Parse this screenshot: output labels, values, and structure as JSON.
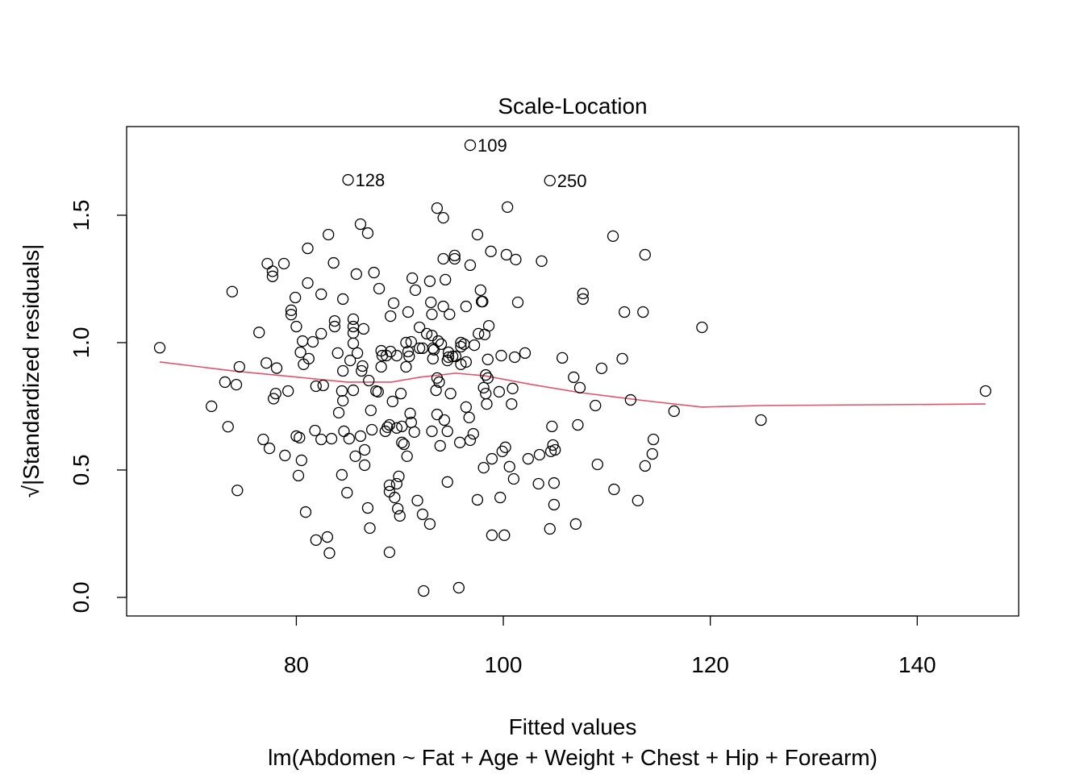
{
  "chart_data": {
    "type": "scatter",
    "title": "Scale-Location",
    "xlabel": "Fitted values",
    "subtitle": "lm(Abdomen ~ Fat + Age + Weight + Chest + Hip + Forearm)",
    "ylabel": "√|Standardized residuals|",
    "xlim": [
      63.6,
      149.8
    ],
    "ylim": [
      -0.073,
      1.848
    ],
    "xticks": [
      80,
      100,
      120,
      140
    ],
    "xtick_labels": [
      "80",
      "100",
      "120",
      "140"
    ],
    "yticks": [
      0.0,
      0.5,
      1.0,
      1.5
    ],
    "ytick_labels": [
      "0.0",
      "0.5",
      "1.0",
      "1.5"
    ],
    "grid": false,
    "point_color": "#000000",
    "line_color": "#DF536B",
    "labeled_points": [
      {
        "label": "128",
        "x": 85.0,
        "y": 1.639
      },
      {
        "label": "109",
        "x": 96.8,
        "y": 1.775
      },
      {
        "label": "250",
        "x": 104.5,
        "y": 1.636
      }
    ],
    "points": [
      [
        66.8,
        0.98
      ],
      [
        71.8,
        0.75
      ],
      [
        73.1,
        0.845
      ],
      [
        73.4,
        0.67
      ],
      [
        73.8,
        1.2
      ],
      [
        74.2,
        0.835
      ],
      [
        74.3,
        0.42
      ],
      [
        74.5,
        0.905
      ],
      [
        76.4,
        1.04
      ],
      [
        76.8,
        0.62
      ],
      [
        77.1,
        0.92
      ],
      [
        77.2,
        1.31
      ],
      [
        77.4,
        0.585
      ],
      [
        77.7,
        1.28
      ],
      [
        77.7,
        1.26
      ],
      [
        77.8,
        0.78
      ],
      [
        78.0,
        0.8
      ],
      [
        78.1,
        0.9
      ],
      [
        78.8,
        1.31
      ],
      [
        78.9,
        0.557
      ],
      [
        79.2,
        0.81
      ],
      [
        79.5,
        1.127
      ],
      [
        79.5,
        1.11
      ],
      [
        79.9,
        1.177
      ],
      [
        80.0,
        1.063
      ],
      [
        80.0,
        0.633
      ],
      [
        80.2,
        0.478
      ],
      [
        80.3,
        0.627
      ],
      [
        80.4,
        0.962
      ],
      [
        80.5,
        0.538
      ],
      [
        80.6,
        1.006
      ],
      [
        80.7,
        0.915
      ],
      [
        80.9,
        0.335
      ],
      [
        81.1,
        1.234
      ],
      [
        81.1,
        1.37
      ],
      [
        81.2,
        0.937
      ],
      [
        81.6,
        1.003
      ],
      [
        81.8,
        0.655
      ],
      [
        81.9,
        0.829
      ],
      [
        81.9,
        0.225
      ],
      [
        82.4,
        1.19
      ],
      [
        82.4,
        1.035
      ],
      [
        82.4,
        0.62
      ],
      [
        82.6,
        0.832
      ],
      [
        83.0,
        0.237
      ],
      [
        83.1,
        1.424
      ],
      [
        83.2,
        0.174
      ],
      [
        83.4,
        0.623
      ],
      [
        83.6,
        1.313
      ],
      [
        83.7,
        1.085
      ],
      [
        83.7,
        1.063
      ],
      [
        84.0,
        0.959
      ],
      [
        84.1,
        0.725
      ],
      [
        84.4,
        0.81
      ],
      [
        84.4,
        0.481
      ],
      [
        84.5,
        0.772
      ],
      [
        84.5,
        1.171
      ],
      [
        84.6,
        0.652
      ],
      [
        84.5,
        0.889
      ],
      [
        84.9,
        0.411
      ],
      [
        85.1,
        0.623
      ],
      [
        85.2,
        0.93
      ],
      [
        85.5,
        1.092
      ],
      [
        85.5,
        1.038
      ],
      [
        85.5,
        0.997
      ],
      [
        85.5,
        1.063
      ],
      [
        85.5,
        0.813
      ],
      [
        85.7,
        0.554
      ],
      [
        85.8,
        1.269
      ],
      [
        85.9,
        0.959
      ],
      [
        86.2,
        1.465
      ],
      [
        86.2,
        0.633
      ],
      [
        86.3,
        0.889
      ],
      [
        86.4,
        0.908
      ],
      [
        86.5,
        1.054
      ],
      [
        86.6,
        0.579
      ],
      [
        86.6,
        0.519
      ],
      [
        86.9,
        1.43
      ],
      [
        86.9,
        0.351
      ],
      [
        87.0,
        0.851
      ],
      [
        87.1,
        0.272
      ],
      [
        87.2,
        0.734
      ],
      [
        87.3,
        0.658
      ],
      [
        87.5,
        1.275
      ],
      [
        87.7,
        0.81
      ],
      [
        87.9,
        0.807
      ],
      [
        88.0,
        1.212
      ],
      [
        88.2,
        0.968
      ],
      [
        88.2,
        0.905
      ],
      [
        88.3,
        0.949
      ],
      [
        88.6,
        0.652
      ],
      [
        88.7,
        0.949
      ],
      [
        88.8,
        0.668
      ],
      [
        89.0,
        0.177
      ],
      [
        89.0,
        0.44
      ],
      [
        89.0,
        0.415
      ],
      [
        89.0,
        0.677
      ],
      [
        89.1,
        0.965
      ],
      [
        89.1,
        1.104
      ],
      [
        89.3,
        0.769
      ],
      [
        89.4,
        1.155
      ],
      [
        89.5,
        0.392
      ],
      [
        89.7,
        0.665
      ],
      [
        89.7,
        0.446
      ],
      [
        89.7,
        0.949
      ],
      [
        89.8,
        0.348
      ],
      [
        89.9,
        0.475
      ],
      [
        90.0,
        0.32
      ],
      [
        90.1,
        0.8
      ],
      [
        90.2,
        0.608
      ],
      [
        90.2,
        0.671
      ],
      [
        90.4,
        0.601
      ],
      [
        90.6,
        1.0
      ],
      [
        90.6,
        0.905
      ],
      [
        90.7,
        0.554
      ],
      [
        90.8,
        0.965
      ],
      [
        90.8,
        1.12
      ],
      [
        90.9,
        0.946
      ],
      [
        91.0,
        0.722
      ],
      [
        91.1,
        1.003
      ],
      [
        91.1,
        0.687
      ],
      [
        91.2,
        1.253
      ],
      [
        91.4,
        0.649
      ],
      [
        91.5,
        1.206
      ],
      [
        91.7,
        0.38
      ],
      [
        91.9,
        1.06
      ],
      [
        91.9,
        0.978
      ],
      [
        92.2,
        0.978
      ],
      [
        92.2,
        0.326
      ],
      [
        92.3,
        0.025
      ],
      [
        92.6,
        1.035
      ],
      [
        92.9,
        0.288
      ],
      [
        92.9,
        1.241
      ],
      [
        93.0,
        1.158
      ],
      [
        93.1,
        0.652
      ],
      [
        93.1,
        1.028
      ],
      [
        93.1,
        1.111
      ],
      [
        93.2,
        0.978
      ],
      [
        93.2,
        0.937
      ],
      [
        93.3,
        0.972
      ],
      [
        93.5,
        0.813
      ],
      [
        93.6,
        0.718
      ],
      [
        93.6,
        1.528
      ],
      [
        93.6,
        0.861
      ],
      [
        93.7,
        1.006
      ],
      [
        93.8,
        0.845
      ],
      [
        93.9,
        0.595
      ],
      [
        94.0,
        0.994
      ],
      [
        94.2,
        1.329
      ],
      [
        94.2,
        1.142
      ],
      [
        94.2,
        1.49
      ],
      [
        94.3,
        0.696
      ],
      [
        94.4,
        1.247
      ],
      [
        94.6,
        0.93
      ],
      [
        94.6,
        0.652
      ],
      [
        94.6,
        0.453
      ],
      [
        94.7,
        0.943
      ],
      [
        94.8,
        1.111
      ],
      [
        94.7,
        0.962
      ],
      [
        94.9,
        0.8
      ],
      [
        95.1,
        0.946
      ],
      [
        95.3,
        1.329
      ],
      [
        95.3,
        1.342
      ],
      [
        95.4,
        0.946
      ],
      [
        95.7,
        0.038
      ],
      [
        95.8,
        0.608
      ],
      [
        95.9,
        1.0
      ],
      [
        95.9,
        0.915
      ],
      [
        95.9,
        0.984
      ],
      [
        96.2,
        0.994
      ],
      [
        96.4,
        0.924
      ],
      [
        96.4,
        1.142
      ],
      [
        96.4,
        0.747
      ],
      [
        96.7,
        0.706
      ],
      [
        96.8,
        1.304
      ],
      [
        96.8,
        0.617
      ],
      [
        97.1,
        0.642
      ],
      [
        97.2,
        0.99
      ],
      [
        97.5,
        1.424
      ],
      [
        97.5,
        0.383
      ],
      [
        97.6,
        1.035
      ],
      [
        97.8,
        1.206
      ],
      [
        97.9,
        1.161
      ],
      [
        98.0,
        1.161
      ],
      [
        98.1,
        0.823
      ],
      [
        98.1,
        0.509
      ],
      [
        98.2,
        1.032
      ],
      [
        98.3,
        0.8
      ],
      [
        98.3,
        0.873
      ],
      [
        98.4,
        0.759
      ],
      [
        98.5,
        0.934
      ],
      [
        98.5,
        0.861
      ],
      [
        98.6,
        1.066
      ],
      [
        98.8,
        1.358
      ],
      [
        98.9,
        0.244
      ],
      [
        98.9,
        0.544
      ],
      [
        99.6,
        0.807
      ],
      [
        99.7,
        0.392
      ],
      [
        99.8,
        0.949
      ],
      [
        99.9,
        0.573
      ],
      [
        100.1,
        0.244
      ],
      [
        100.2,
        0.589
      ],
      [
        100.3,
        1.345
      ],
      [
        100.4,
        1.532
      ],
      [
        100.6,
        0.513
      ],
      [
        100.8,
        0.759
      ],
      [
        100.9,
        0.82
      ],
      [
        101.0,
        0.465
      ],
      [
        101.1,
        0.943
      ],
      [
        101.2,
        1.326
      ],
      [
        101.4,
        1.158
      ],
      [
        102.1,
        0.959
      ],
      [
        102.4,
        0.544
      ],
      [
        103.4,
        0.446
      ],
      [
        103.5,
        0.56
      ],
      [
        103.7,
        1.32
      ],
      [
        104.5,
        0.269
      ],
      [
        104.6,
        0.573
      ],
      [
        104.7,
        0.671
      ],
      [
        104.8,
        0.598
      ],
      [
        104.9,
        0.449
      ],
      [
        104.9,
        0.364
      ],
      [
        105.0,
        0.579
      ],
      [
        105.7,
        0.94
      ],
      [
        106.8,
        0.864
      ],
      [
        107.0,
        0.288
      ],
      [
        107.2,
        0.677
      ],
      [
        107.4,
        0.823
      ],
      [
        107.7,
        1.193
      ],
      [
        107.7,
        1.171
      ],
      [
        108.9,
        0.753
      ],
      [
        109.1,
        0.522
      ],
      [
        109.5,
        0.899
      ],
      [
        110.6,
        1.418
      ],
      [
        110.7,
        0.424
      ],
      [
        111.5,
        0.937
      ],
      [
        111.7,
        1.12
      ],
      [
        112.3,
        0.775
      ],
      [
        113.0,
        0.38
      ],
      [
        113.5,
        1.12
      ],
      [
        113.7,
        0.516
      ],
      [
        113.7,
        1.345
      ],
      [
        114.4,
        0.563
      ],
      [
        114.5,
        0.62
      ],
      [
        116.5,
        0.731
      ],
      [
        119.2,
        1.06
      ],
      [
        124.9,
        0.696
      ],
      [
        146.6,
        0.81
      ]
    ],
    "smoother": [
      [
        66.8,
        0.924
      ],
      [
        73.9,
        0.889
      ],
      [
        80.2,
        0.864
      ],
      [
        84.9,
        0.845
      ],
      [
        89.2,
        0.845
      ],
      [
        91.9,
        0.864
      ],
      [
        95.4,
        0.88
      ],
      [
        98.2,
        0.87
      ],
      [
        102.8,
        0.835
      ],
      [
        107.4,
        0.804
      ],
      [
        113.7,
        0.772
      ],
      [
        119.2,
        0.747
      ],
      [
        124.9,
        0.753
      ],
      [
        146.6,
        0.759
      ]
    ]
  }
}
